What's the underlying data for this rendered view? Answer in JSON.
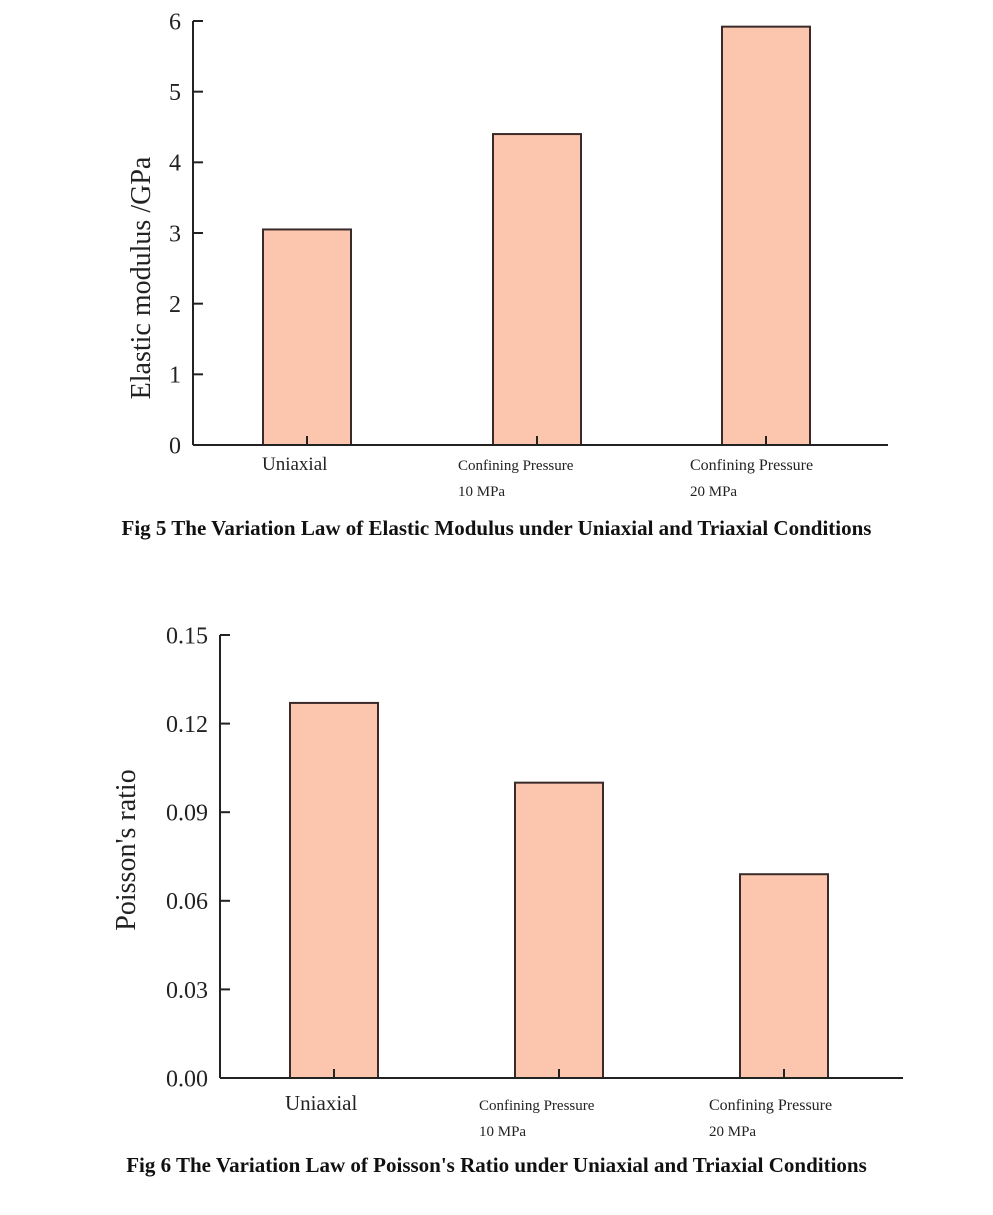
{
  "figures": [
    {
      "caption": "Fig 5 The Variation Law of Elastic Modulus under Uniaxial and Triaxial Conditions"
    },
    {
      "caption": "Fig 6 The Variation Law of Poisson's Ratio under Uniaxial and Triaxial Conditions"
    }
  ],
  "colors": {
    "bar_fill": "#fcc6ae",
    "bar_stroke": "#3a2a2a",
    "axis": "#222222"
  },
  "chart_data": [
    {
      "type": "bar",
      "title": "",
      "xlabel": "",
      "ylabel": "Elastic modulus /GPa",
      "categories": [
        [
          "Uniaxial"
        ],
        [
          "Confining Pressure",
          "10 MPa"
        ],
        [
          "Confining Pressure",
          "20 MPa"
        ]
      ],
      "values": [
        3.05,
        4.4,
        5.92
      ],
      "ylim": [
        0,
        6
      ],
      "yticks": [
        "0",
        "1",
        "2",
        "3",
        "4",
        "5",
        "6"
      ],
      "ytick_values": [
        0,
        1,
        2,
        3,
        4,
        5,
        6
      ]
    },
    {
      "type": "bar",
      "title": "",
      "xlabel": "",
      "ylabel": "Poisson's ratio",
      "categories": [
        [
          "Uniaxial"
        ],
        [
          "Confining Pressure",
          "10 MPa"
        ],
        [
          "Confining Pressure",
          "20 MPa"
        ]
      ],
      "values": [
        0.127,
        0.1,
        0.069
      ],
      "ylim": [
        0,
        0.15
      ],
      "yticks": [
        "0.00",
        "0.03",
        "0.06",
        "0.09",
        "0.12",
        "0.15"
      ],
      "ytick_values": [
        0,
        0.03,
        0.06,
        0.09,
        0.12,
        0.15
      ]
    }
  ]
}
